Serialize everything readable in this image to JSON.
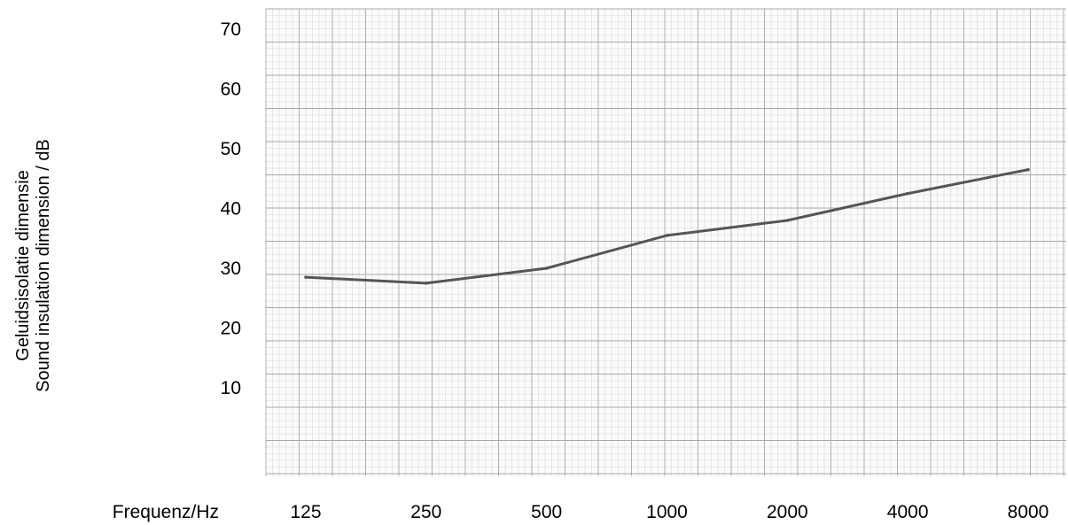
{
  "chart_data": {
    "type": "line",
    "xlabel": "Frequenz/Hz",
    "ylabel_lines": [
      "Geluidsisolatie dimensie",
      "Sound insulation dimension / dB"
    ],
    "x_scale": "log",
    "x_ticks": [
      "125",
      "250",
      "500",
      "1000",
      "2000",
      "4000",
      "8000"
    ],
    "y_ticks": [
      10,
      20,
      30,
      40,
      50,
      60,
      70
    ],
    "ylim": [
      -3,
      72
    ],
    "grid": "graph paper",
    "series": [
      {
        "x": [
          125,
          250,
          500,
          1000,
          2000,
          4000,
          8000
        ],
        "y": [
          28.5,
          27.5,
          30,
          35.5,
          38,
          42.5,
          46.5
        ]
      }
    ],
    "colors": {
      "line": "#555555",
      "grid_major": "#a8a8a8",
      "grid_minor": "#d9d9d9"
    }
  }
}
